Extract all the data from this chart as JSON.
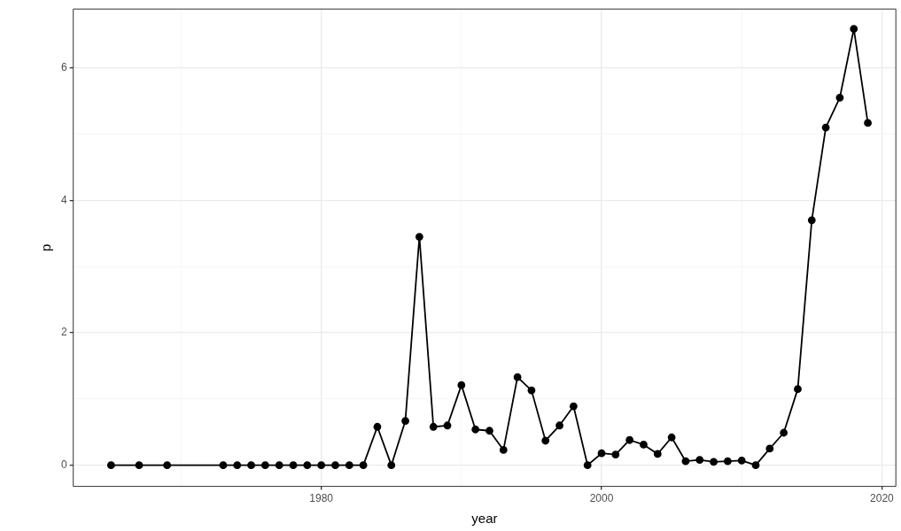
{
  "chart_data": {
    "type": "line",
    "xlabel": "year",
    "ylabel": "p",
    "x": [
      1965,
      1967,
      1969,
      1973,
      1974,
      1975,
      1976,
      1977,
      1978,
      1979,
      1980,
      1981,
      1982,
      1983,
      1984,
      1985,
      1986,
      1987,
      1988,
      1989,
      1990,
      1991,
      1992,
      1993,
      1994,
      1995,
      1996,
      1997,
      1998,
      1999,
      2000,
      2001,
      2002,
      2003,
      2004,
      2005,
      2006,
      2007,
      2008,
      2009,
      2010,
      2011,
      2012,
      2013,
      2014,
      2015,
      2016,
      2017,
      2018,
      2019
    ],
    "series": [
      {
        "color": "#000000",
        "values": [
          0,
          0,
          0,
          0,
          0,
          0,
          0,
          0,
          0,
          0,
          0,
          0,
          0,
          0,
          0.58,
          0,
          0.67,
          3.45,
          0.58,
          0.6,
          1.21,
          0.54,
          0.52,
          0.23,
          1.33,
          1.13,
          0.37,
          0.6,
          0.89,
          0,
          0.18,
          0.16,
          0.38,
          0.31,
          0.17,
          0.42,
          0.06,
          0.08,
          0.05,
          0.06,
          0.07,
          0,
          0.25,
          0.49,
          1.15,
          3.7,
          5.1,
          5.55,
          6.59,
          5.17
        ]
      }
    ],
    "xlim": [
      1962.3,
      2021
    ],
    "xticks": [
      {
        "value": 1970,
        "label": null
      },
      1980,
      {
        "value": 1990,
        "label": null
      },
      2000,
      {
        "value": 2010,
        "label": null
      },
      2020
    ],
    "ylim": [
      -0.32,
      6.89
    ],
    "yticks": [
      0,
      {
        "value": 1,
        "label": null
      },
      2,
      {
        "value": 3,
        "label": null
      },
      4,
      {
        "value": 5,
        "label": null
      },
      6
    ],
    "grid": true,
    "marker": "circle",
    "line_style": "solid",
    "legend": false
  }
}
